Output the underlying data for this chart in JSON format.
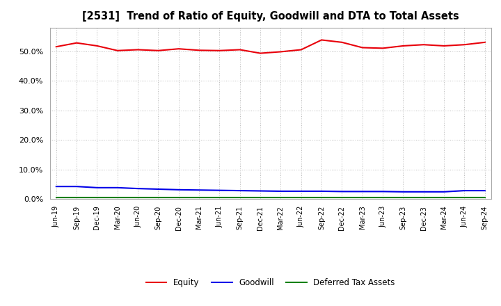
{
  "title": "[2531]  Trend of Ratio of Equity, Goodwill and DTA to Total Assets",
  "x_labels": [
    "Jun-19",
    "Sep-19",
    "Dec-19",
    "Mar-20",
    "Jun-20",
    "Sep-20",
    "Dec-20",
    "Mar-21",
    "Jun-21",
    "Sep-21",
    "Dec-21",
    "Mar-22",
    "Jun-22",
    "Sep-22",
    "Dec-22",
    "Mar-23",
    "Jun-23",
    "Sep-23",
    "Dec-23",
    "Mar-24",
    "Jun-24",
    "Sep-24"
  ],
  "equity": [
    51.5,
    52.8,
    51.8,
    50.2,
    50.5,
    50.2,
    50.8,
    50.3,
    50.2,
    50.5,
    49.3,
    49.8,
    50.5,
    53.8,
    53.0,
    51.2,
    51.0,
    51.8,
    52.2,
    51.8,
    52.2,
    53.0
  ],
  "goodwill": [
    4.2,
    4.2,
    3.8,
    3.8,
    3.5,
    3.3,
    3.1,
    3.0,
    2.9,
    2.8,
    2.7,
    2.6,
    2.6,
    2.6,
    2.5,
    2.5,
    2.5,
    2.4,
    2.4,
    2.4,
    2.8,
    2.8
  ],
  "dta": [
    0.5,
    0.5,
    0.5,
    0.5,
    0.5,
    0.5,
    0.5,
    0.5,
    0.5,
    0.5,
    0.5,
    0.5,
    0.5,
    0.5,
    0.5,
    0.5,
    0.5,
    0.5,
    0.5,
    0.5,
    0.5,
    0.5
  ],
  "equity_color": "#e8000a",
  "goodwill_color": "#0000e8",
  "dta_color": "#008000",
  "background_color": "#ffffff",
  "plot_bg_color": "#ffffff",
  "grid_color": "#aaaaaa",
  "ylim": [
    0,
    58
  ],
  "yticks": [
    0,
    10,
    20,
    30,
    40,
    50
  ],
  "legend_labels": [
    "Equity",
    "Goodwill",
    "Deferred Tax Assets"
  ]
}
